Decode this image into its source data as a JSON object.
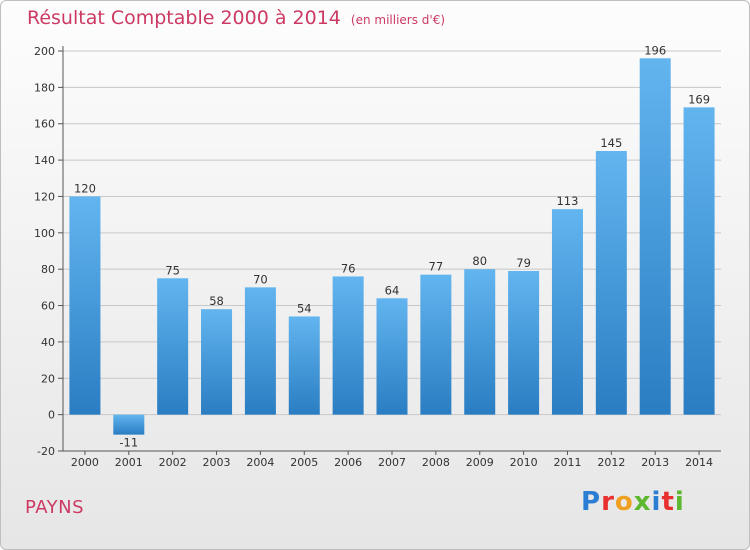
{
  "header": {
    "title": "Résultat Comptable 2000 à 2014",
    "subtitle": "(en milliers d'€)"
  },
  "footer": {
    "location": "PAYNS",
    "logo_letters": [
      "P",
      "r",
      "o",
      "x",
      "i",
      "t",
      "i"
    ],
    "logo_colors": [
      "#2a7fd4",
      "#e8312f",
      "#f0a020",
      "#5cb82e",
      "#2a7fd4",
      "#e8312f",
      "#5cb82e"
    ]
  },
  "colors": {
    "bar_top": "#62b5ef",
    "bar_bottom": "#2a7dc2",
    "grid": "#c8c8c8",
    "axis": "#555555",
    "accent": "#cc3a63"
  },
  "chart_data": {
    "type": "bar",
    "title": "Résultat Comptable 2000 à 2014",
    "subtitle": "(en milliers d'€)",
    "xlabel": "",
    "ylabel": "",
    "categories": [
      "2000",
      "2001",
      "2002",
      "2003",
      "2004",
      "2005",
      "2006",
      "2007",
      "2008",
      "2009",
      "2010",
      "2011",
      "2012",
      "2013",
      "2014"
    ],
    "values": [
      120,
      -11,
      75,
      58,
      70,
      54,
      76,
      64,
      77,
      80,
      79,
      113,
      145,
      196,
      169
    ],
    "ylim": [
      -20,
      200
    ],
    "yticks": [
      -20,
      0,
      20,
      40,
      60,
      80,
      100,
      120,
      140,
      160,
      180,
      200
    ],
    "grid": true,
    "legend": "none"
  }
}
